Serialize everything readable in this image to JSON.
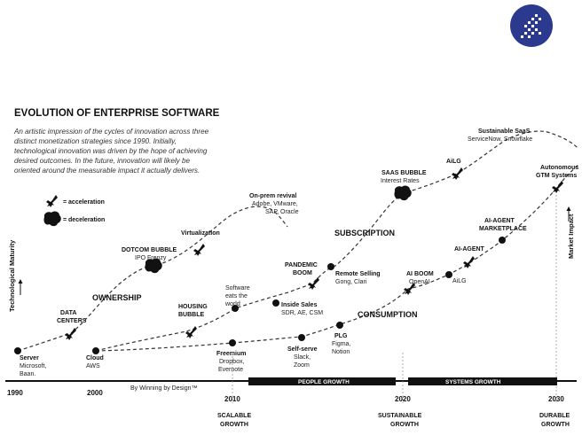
{
  "logo": {
    "icon": "cross-stitch-logo-icon",
    "color": "#2b3a8f"
  },
  "title": "EVOLUTION OF ENTERPRISE SOFTWARE",
  "description": [
    "An artistic impression of the cycles of innovation across three",
    "distinct monetization strategies since 1990. Initially,",
    "technological innovation was driven by the hope of achieving",
    "desired outcomes. In the future, innovation will likely be",
    "oriented around the measurable impact it actually delivers."
  ],
  "legend": {
    "acceleration": "= acceleration",
    "deceleration": "= deceleration"
  },
  "axes": {
    "y_left": "Technological Maturity",
    "y_right": "Market Impact",
    "years": [
      "1990",
      "2000",
      "2010",
      "2020",
      "2030"
    ],
    "credit": "By Winning by Design™",
    "bands": [
      "PEOPLE GROWTH",
      "SYSTEMS GROWTH"
    ],
    "eras": [
      {
        "l1": "SCALABLE",
        "l2": "GROWTH"
      },
      {
        "l1": "SUSTAINABLE",
        "l2": "GROWTH"
      },
      {
        "l1": "DURABLE",
        "l2": "GROWTH"
      }
    ]
  },
  "phases": {
    "ownership": "OWNERSHIP",
    "subscription": "SUBSCRIPTION",
    "consumption": "CONSUMPTION"
  },
  "labels": {
    "server": {
      "t": "Server",
      "s1": "Microsoft,",
      "s2": "Baan."
    },
    "cloud": {
      "t": "Cloud",
      "s1": "AWS"
    },
    "data_centers": {
      "t1": "DATA",
      "t2": "CENTERS"
    },
    "dotcom": {
      "t": "DOTCOM BUBBLE",
      "s": "IPO Frenzy"
    },
    "virtualization": {
      "t": "Virtualization"
    },
    "onprem": {
      "t": "On-prem revival",
      "s1": "Adobe, VMware,",
      "s2": "SAP, Oracle"
    },
    "housing": {
      "t1": "HOUSING",
      "t2": "BUBBLE"
    },
    "software": {
      "s1": "Software",
      "s2": "eats the",
      "s3": "world"
    },
    "freemium": {
      "t": "Freemium",
      "s1": "Dropbox,",
      "s2": "Evernote"
    },
    "inside_sales": {
      "t": "Inside Sales",
      "s": "SDR, AE, CSM"
    },
    "pandemic": {
      "t1": "PANDEMIC",
      "t2": "BOOM"
    },
    "remote": {
      "t": "Remote Selling",
      "s": "Gong, Clari"
    },
    "selfserve": {
      "t": "Self-serve",
      "s1": "Slack,",
      "s2": "Zoom"
    },
    "plg": {
      "t": "PLG",
      "s1": "Figma,",
      "s2": "Notion"
    },
    "saas_bubble": {
      "t": "SAAS BUBBLE",
      "s": "Interest Rates"
    },
    "ailg_top": {
      "t": "AiLG"
    },
    "sustainable_saas": {
      "t": "Sustainable SaaS",
      "s": "ServiceNow, Snowflake"
    },
    "ai_boom": {
      "t": "AI BOOM",
      "s": "OpenAI"
    },
    "ailg_bottom": {
      "t": "AiLG"
    },
    "ai_agent": {
      "t": "AI-AGENT"
    },
    "ai_agent_market": {
      "t1": "AI-AGENT",
      "t2": "MARKETPLACE"
    },
    "autonomous": {
      "t1": "Autonomous",
      "t2": "GTM Systems"
    }
  }
}
